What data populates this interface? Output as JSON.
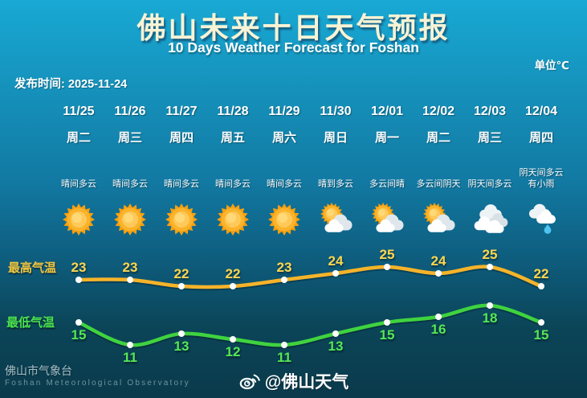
{
  "header": {
    "title": "佛山未来十日天气预报",
    "subtitle": "10 Days Weather Forecast for Foshan",
    "unit_label": "单位℃",
    "publish_label": "发布时间:",
    "publish_date": "2025-11-24"
  },
  "columns": [
    {
      "date": "11/25",
      "weekday": "周二",
      "condition": [
        "晴间多云"
      ],
      "icon": "sun"
    },
    {
      "date": "11/26",
      "weekday": "周三",
      "condition": [
        "晴间多云"
      ],
      "icon": "sun"
    },
    {
      "date": "11/27",
      "weekday": "周四",
      "condition": [
        "晴间多云"
      ],
      "icon": "sun"
    },
    {
      "date": "11/28",
      "weekday": "周五",
      "condition": [
        "晴间多云"
      ],
      "icon": "sun"
    },
    {
      "date": "11/29",
      "weekday": "周六",
      "condition": [
        "晴间多云"
      ],
      "icon": "sun"
    },
    {
      "date": "11/30",
      "weekday": "周日",
      "condition": [
        "晴到多云"
      ],
      "icon": "sun-cloud"
    },
    {
      "date": "12/01",
      "weekday": "周一",
      "condition": [
        "多云间晴"
      ],
      "icon": "sun-cloud"
    },
    {
      "date": "12/02",
      "weekday": "周二",
      "condition": [
        "多云间阴天"
      ],
      "icon": "sun-cloud"
    },
    {
      "date": "12/03",
      "weekday": "周三",
      "condition": [
        "阴天间多云"
      ],
      "icon": "clouds"
    },
    {
      "date": "12/04",
      "weekday": "周四",
      "condition": [
        "阴天间多云",
        "有小雨"
      ],
      "icon": "cloud-rain"
    }
  ],
  "chart_data": {
    "type": "line",
    "title": "佛山未来十日天气预报",
    "categories": [
      "11/25",
      "11/26",
      "11/27",
      "11/28",
      "11/29",
      "11/30",
      "12/01",
      "12/02",
      "12/03",
      "12/04"
    ],
    "series": [
      {
        "name": "最高气温",
        "values": [
          23,
          23,
          22,
          22,
          23,
          24,
          25,
          24,
          25,
          22
        ],
        "color": "#f6b32a",
        "label_color": "#ffd64e"
      },
      {
        "name": "最低气温",
        "values": [
          15,
          11,
          13,
          12,
          11,
          13,
          15,
          16,
          18,
          15
        ],
        "color": "#3fd33f",
        "label_color": "#55e855"
      }
    ],
    "unit": "℃",
    "grid": false,
    "legend_position": "left",
    "point_marker": "white-dot"
  },
  "footer": {
    "org_cn": "佛山市气象台",
    "org_en": "Foshan Meteorological Observatory",
    "weibo_handle": "@佛山天气"
  },
  "colors": {
    "bg_top": "#18a9d4",
    "bg_bottom": "#0a3a4b",
    "title_text": "#f7f3d4",
    "high_line": "#f6b32a",
    "low_line": "#3fd33f",
    "sun_orange": "#f59f10",
    "rain_drop": "#4fc3f0"
  }
}
